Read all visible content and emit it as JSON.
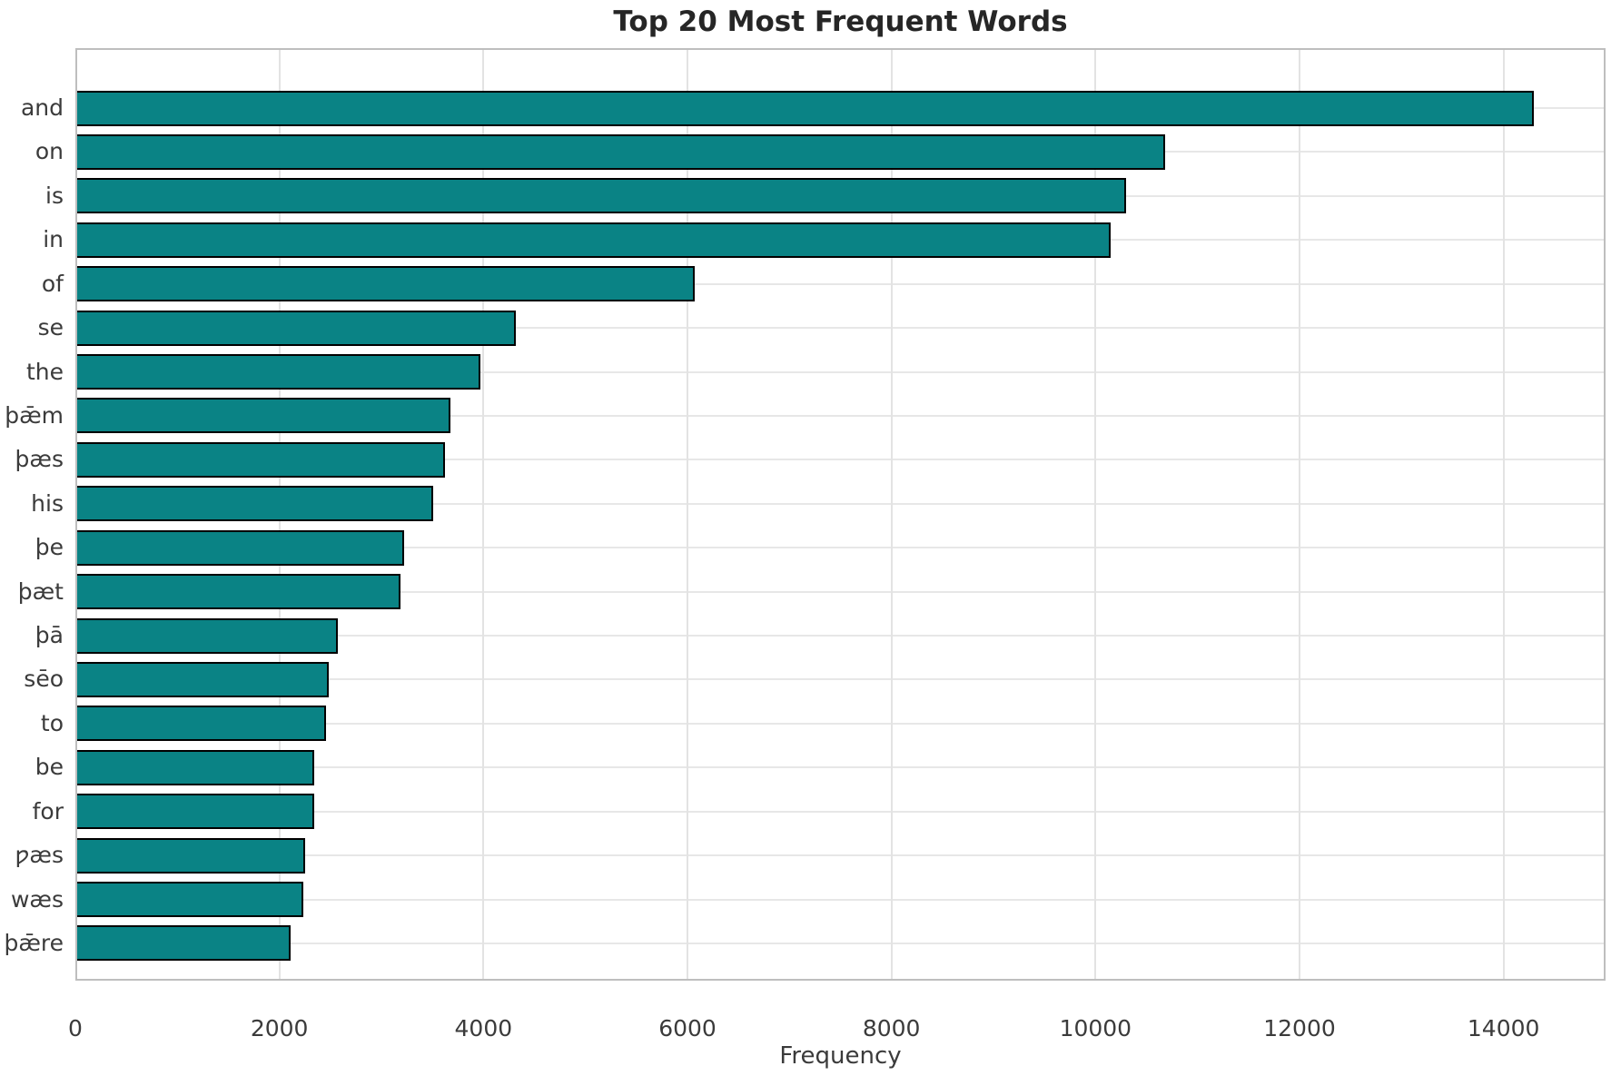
{
  "figure": {
    "background": "#ffffff"
  },
  "chart_data": {
    "type": "bar",
    "orientation": "horizontal",
    "title": "Top 20 Most Frequent Words",
    "xlabel": "Frequency",
    "ylabel": "",
    "categories": [
      "and",
      "on",
      "is",
      "in",
      "of",
      "se",
      "the",
      "þǣm",
      "þæs",
      "his",
      "þe",
      "þæt",
      "þā",
      "sēo",
      "to",
      "be",
      "for",
      "ƿæs",
      "wæs",
      "þǣre"
    ],
    "values": [
      14300,
      10680,
      10300,
      10150,
      6070,
      4320,
      3970,
      3680,
      3620,
      3510,
      3220,
      3190,
      2570,
      2480,
      2460,
      2345,
      2340,
      2250,
      2230,
      2110
    ],
    "xlim": [
      0,
      15000
    ],
    "xticks": [
      0,
      2000,
      4000,
      6000,
      8000,
      10000,
      12000,
      14000
    ],
    "grid": true,
    "legend": "none",
    "bar_color": "#0a8385",
    "bar_edge_color": "#000000",
    "grid_color": "#e3e3e3",
    "tick_label_color": "#3b3b3b",
    "title_color": "#262626"
  }
}
